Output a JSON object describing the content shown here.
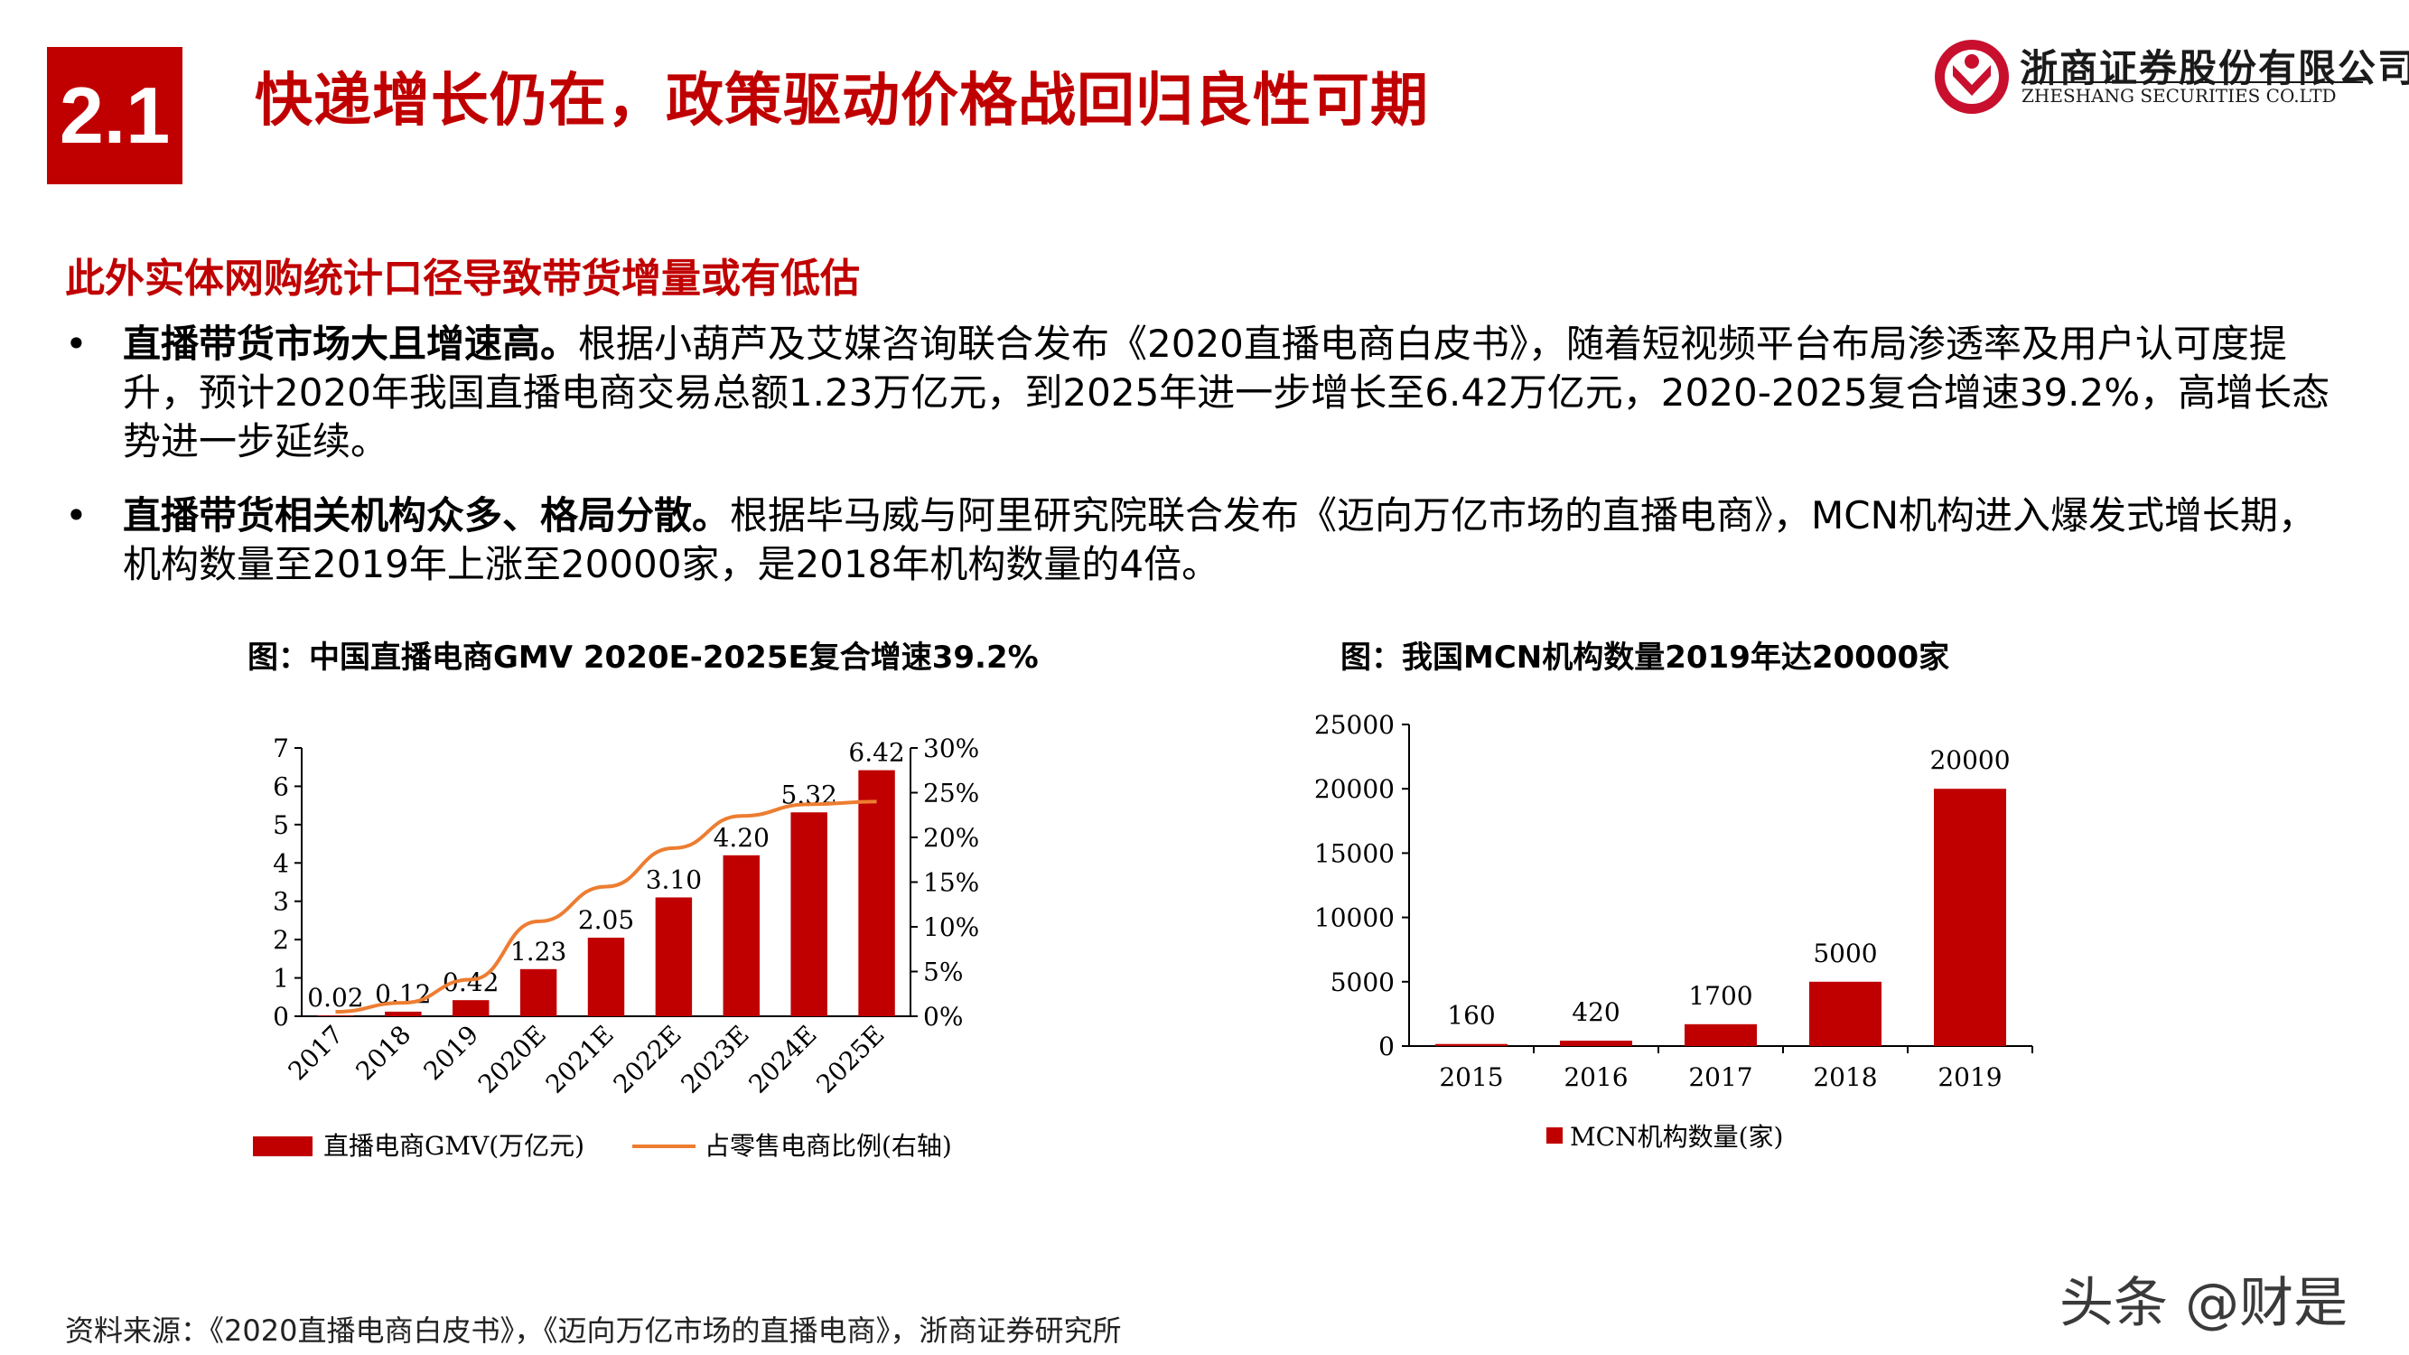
{
  "header": {
    "section_number": "2.1",
    "title": "快递增长仍在，政策驱动价格战回归良性可期",
    "logo_cn": "浙商证券股份有限公司",
    "logo_en": "ZHESHANG SECURITIES CO.LTD"
  },
  "subheading": "此外实体网购统计口径导致带货增量或有低估",
  "bullets": [
    {
      "dot": "•",
      "lead": "直播带货市场大且增速高。",
      "body": "根据小葫芦及艾媒咨询联合发布《2020直播电商白皮书》，随着短视频平台布局渗透率及用户认可度提升，预计2020年我国直播电商交易总额1.23万亿元，到2025年进一步增长至6.42万亿元，2020-2025复合增速39.2%，高增长态势进一步延续。"
    },
    {
      "dot": "•",
      "lead": "直播带货相关机构众多、格局分散。",
      "body": "根据毕马威与阿里研究院联合发布《迈向万亿市场的直播电商》，MCN机构进入爆发式增长期，机构数量至2019年上涨至20000家，是2018年机构数量的4倍。"
    }
  ],
  "chart_data": [
    {
      "type": "bar",
      "title": "图：中国直播电商GMV 2020E-2025E复合增速39.2%",
      "categories": [
        "2017",
        "2018",
        "2019",
        "2020E",
        "2021E",
        "2022E",
        "2023E",
        "2024E",
        "2025E"
      ],
      "series": [
        {
          "name": "直播电商GMV(万亿元)",
          "type": "bar",
          "axis": "left",
          "color": "#c00000",
          "values": [
            0.02,
            0.12,
            0.42,
            1.23,
            2.05,
            3.1,
            4.2,
            5.32,
            6.42
          ],
          "labels": [
            "0.02",
            "0.12",
            "0.42",
            "1.23",
            "2.05",
            "3.10",
            "4.20",
            "5.32",
            "6.42"
          ]
        },
        {
          "name": "占零售电商比例(右轴)",
          "type": "line",
          "axis": "right",
          "color": "#ed7d31",
          "values": [
            0.5,
            1.5,
            4.1,
            10.6,
            14.5,
            18.8,
            22.4,
            23.7,
            24.0
          ]
        }
      ],
      "ylim": [
        0,
        7
      ],
      "yticks": [
        "0",
        "1",
        "2",
        "3",
        "4",
        "5",
        "6",
        "7"
      ],
      "y2lim": [
        0,
        30
      ],
      "y2ticks": [
        "0%",
        "5%",
        "10%",
        "15%",
        "20%",
        "25%",
        "30%"
      ],
      "legend": "bottom",
      "grid": false
    },
    {
      "type": "bar",
      "title": "图：我国MCN机构数量2019年达20000家",
      "categories": [
        "2015",
        "2016",
        "2017",
        "2018",
        "2019"
      ],
      "series": [
        {
          "name": "MCN机构数量(家)",
          "color": "#c00000",
          "values": [
            160,
            420,
            1700,
            5000,
            20000
          ],
          "labels": [
            "160",
            "420",
            "1700",
            "5000",
            "20000"
          ]
        }
      ],
      "ylim": [
        0,
        25000
      ],
      "yticks": [
        "0",
        "5000",
        "10000",
        "15000",
        "20000",
        "25000"
      ],
      "legend": "bottom",
      "grid": false
    }
  ],
  "source": "资料来源：《2020直播电商白皮书》，《迈向万亿市场的直播电商》，浙商证券研究所",
  "watermark": "头条 @财是"
}
